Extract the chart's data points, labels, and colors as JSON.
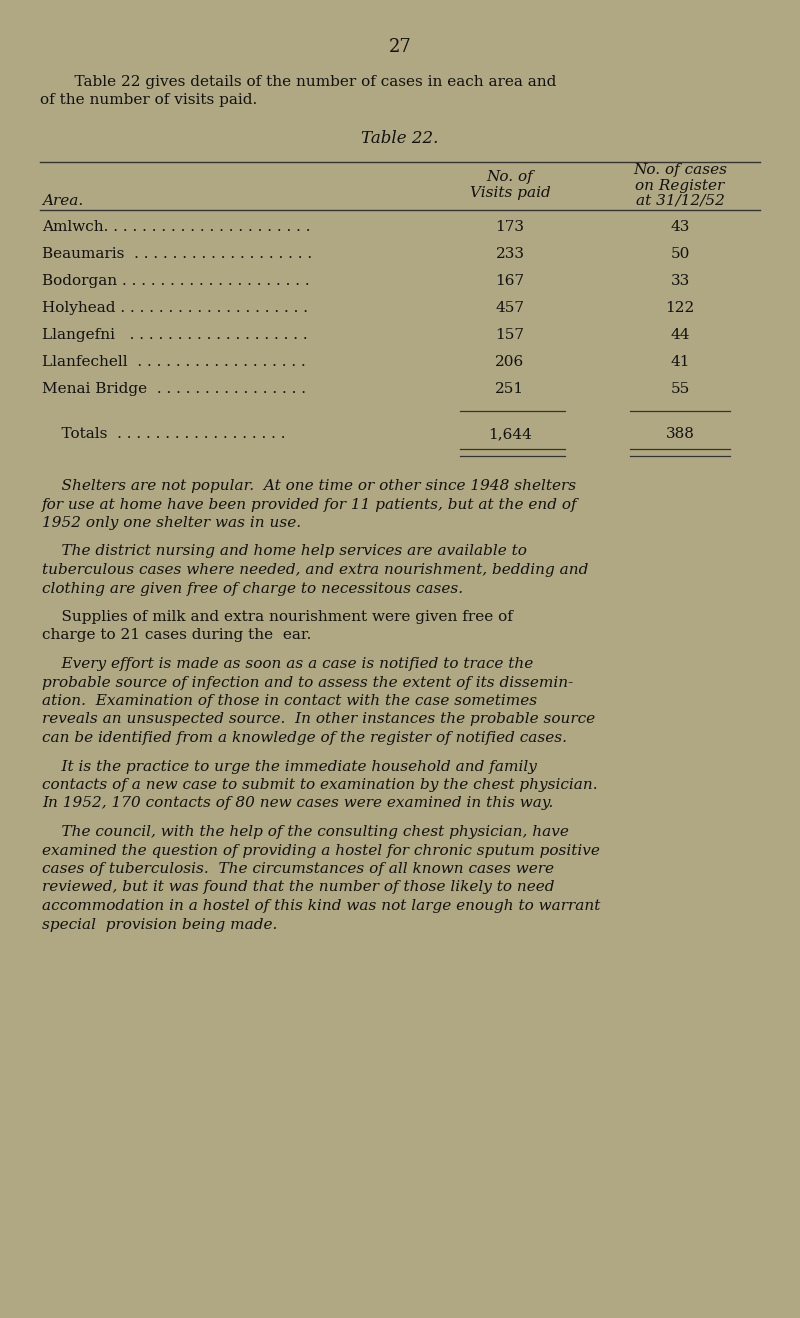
{
  "background_color": "#b0a882",
  "page_number": "27",
  "intro_line1": "    Table 22 gives details of the number of cases in each area and",
  "intro_line2": "of the number of visits paid.",
  "table_title": "Table 22.",
  "col1_header": "Area.",
  "col2_header_line1": "No. of",
  "col2_header_line2": "Visits paid",
  "col3_header_line1": "No. of cases",
  "col3_header_line2": "on Register",
  "col3_header_line3": "at 31/12/52",
  "table_areas": [
    "Amlwch",
    "Beaumaris",
    "Bodorgan",
    "Holyhead",
    "Llangefni",
    "Llanfechell",
    "Menai Bridge"
  ],
  "area_dots": [
    "Amlwch. . . . . . . . . . . . . . . . . . . . . .",
    "Beaumaris  . . . . . . . . . . . . . . . . . . .",
    "Bodorgan . . . . . . . . . . . . . . . . . . . .",
    "Holyhead . . . . . . . . . . . . . . . . . . . .",
    "Llangefni   . . . . . . . . . . . . . . . . . . .",
    "Llanfechell  . . . . . . . . . . . . . . . . . .",
    "Menai Bridge  . . . . . . . . . . . . . . . ."
  ],
  "table_visits": [
    "173",
    "233",
    "167",
    "457",
    "157",
    "206",
    "251"
  ],
  "table_cases": [
    "43",
    "50",
    "33",
    "122",
    "44",
    "41",
    "55"
  ],
  "totals_dots": "    Totals  . . . . . . . . . . . . . . . . . .",
  "totals_visits": "1,644",
  "totals_cases": "388",
  "para1_indent": "    Shelters are not popular.",
  "para1_line1_rest": "  At one time or other since 1948 shelters",
  "para1_lines": [
    "for use at home have been provided for 11 patients, but at the end of",
    "1952 only one shelter was in use."
  ],
  "para2_indent": "    The district nursing and home help services are available to",
  "para2_lines": [
    "tuberculous cases where needed, and extra nourishment, bedding and",
    "clothing are given free of charge to necessitous cases."
  ],
  "para3_line1": "    Supplies of milk and extra nourishment were given free of",
  "para3_line2": "charge to 21 cases during the  ear.",
  "para4_indent": "    Every effort is made as soon as a case is notified to trace the",
  "para4_lines": [
    "probable source of infection and to assess the extent of its dissemin-",
    "ation.  Examination of those in contact with the case sometimes",
    "reveals an unsuspected source.  In other instances the probable source",
    "can be identified from a knowledge of the register of notified cases."
  ],
  "para5_indent": "    It is the practice to urge the immediate household and family",
  "para5_lines": [
    "contacts of a new case to submit to examination by the chest physician.",
    "In 1952, 170 contacts of 80 new cases were examined in this way."
  ],
  "para6_indent": "    The council, with the help of the consulting chest physician, have",
  "para6_lines": [
    "examined the question of providing a hostel for chronic sputum positive",
    "cases of tuberculosis.  The circumstances of all known cases were",
    "reviewed, but it was found that the number of those likely to need",
    "accommodation in a hostel of this kind was not large enough to warrant",
    "special  provision being made."
  ],
  "text_color": "#111111",
  "line_color": "#333333"
}
